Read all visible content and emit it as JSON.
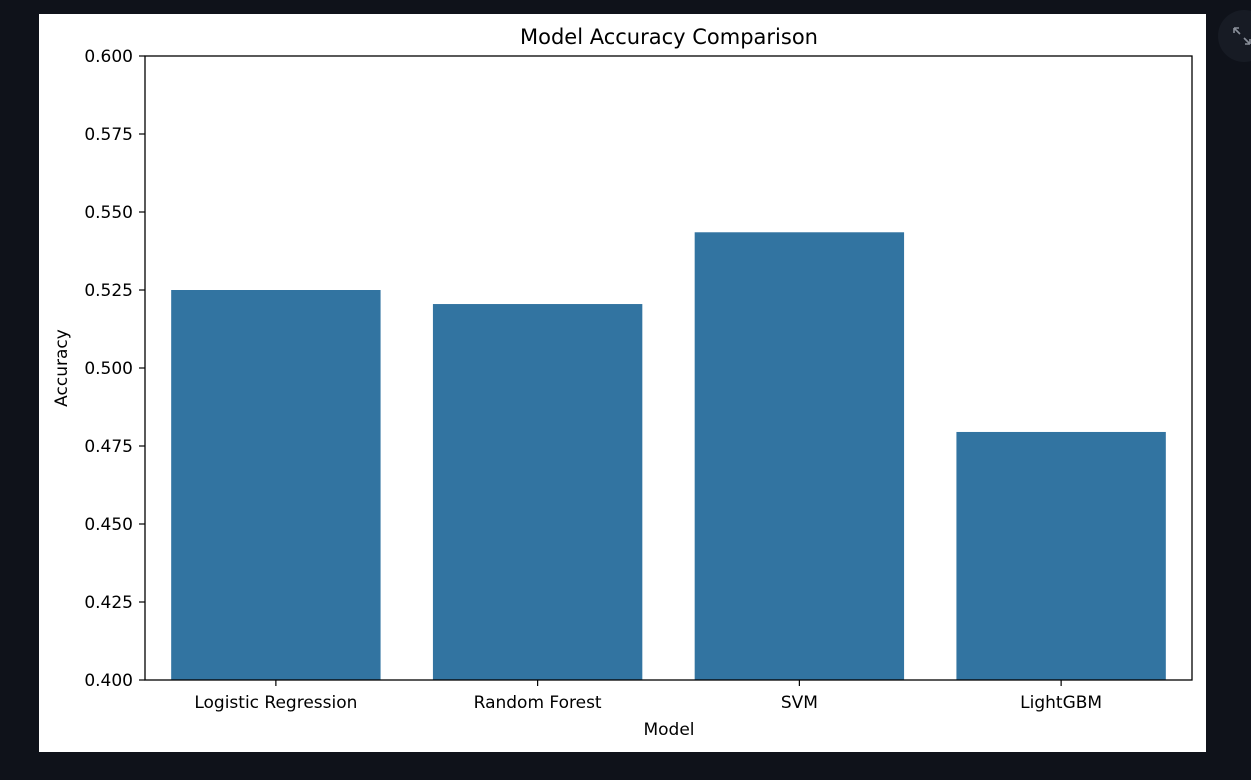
{
  "ui": {
    "expand_icon": "expand-icon"
  },
  "chart_data": {
    "type": "bar",
    "title": "Model Accuracy Comparison",
    "xlabel": "Model",
    "ylabel": "Accuracy",
    "categories": [
      "Logistic Regression",
      "Random Forest",
      "SVM",
      "LightGBM"
    ],
    "values": [
      0.525,
      0.5205,
      0.5435,
      0.4795
    ],
    "ylim": [
      0.4,
      0.6
    ],
    "yticks": [
      "0.400",
      "0.425",
      "0.450",
      "0.475",
      "0.500",
      "0.525",
      "0.550",
      "0.575",
      "0.600"
    ],
    "bar_color": "#3274a1",
    "grid": false,
    "legend": false
  }
}
